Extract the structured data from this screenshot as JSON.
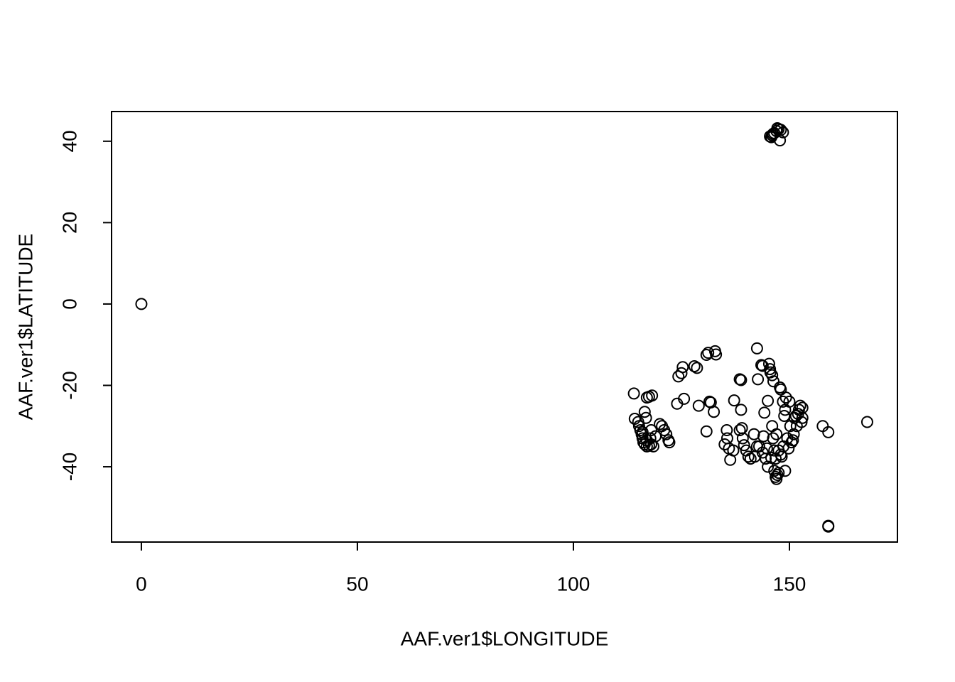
{
  "chart_data": {
    "type": "scatter",
    "xlabel": "AAF.ver1$LONGITUDE",
    "ylabel": "AAF.ver1$LATITUDE",
    "xlim": [
      -6.9,
      175
    ],
    "ylim": [
      -58.5,
      47.3
    ],
    "xticks": [
      0,
      50,
      100,
      150
    ],
    "yticks": [
      -40,
      -20,
      0,
      20,
      40
    ],
    "color": "#000000",
    "x": [
      0,
      145.5,
      146,
      146.5,
      147,
      147.5,
      148,
      148.5,
      147.8,
      146.2,
      147.2,
      145.8,
      159,
      159,
      159,
      168,
      157.7,
      114,
      114.2,
      115,
      115.5,
      115.8,
      116,
      116.2,
      116.5,
      117,
      117.5,
      118,
      118.5,
      116.5,
      116.8,
      117,
      117.5,
      118.2,
      118,
      119,
      120,
      120.5,
      121,
      121.5,
      122,
      122.2,
      117.8,
      115.2,
      116,
      117,
      124,
      124.3,
      125,
      125.3,
      125.6,
      128,
      128.6,
      129,
      130.8,
      131.2,
      132.8,
      133,
      131.5,
      131.8,
      132.5,
      130.8,
      135.5,
      135,
      135.6,
      136,
      136.3,
      137,
      137.2,
      138.5,
      138.8,
      138.8,
      138.5,
      139,
      139.2,
      139.5,
      140,
      140.5,
      141,
      141.8,
      142.5,
      142.7,
      143,
      143.5,
      143.8,
      144,
      144.2,
      144.5,
      145,
      145,
      145.3,
      145.5,
      145.6,
      146,
      146.3,
      146,
      146.2,
      146.5,
      146.5,
      146.8,
      147,
      147.2,
      147.5,
      147.8,
      148,
      148.2,
      148.5,
      148.6,
      148.8,
      149,
      149,
      149.2,
      149.5,
      149.8,
      150,
      150.2,
      150.5,
      150.8,
      151,
      151.2,
      151.5,
      151.7,
      152,
      152.2,
      152.5,
      152.8,
      153,
      153,
      147,
      146.8,
      147.5,
      148,
      145.8,
      143.8,
      142,
      142.5,
      144.8
    ],
    "y": [
      0,
      41.2,
      41.5,
      42,
      42.5,
      43,
      42.8,
      42.2,
      40.2,
      41.8,
      43.2,
      41,
      -54.5,
      -54.7,
      -31.5,
      -29,
      -30,
      -22,
      -28.2,
      -29,
      -31,
      -32,
      -33,
      -34,
      -34.5,
      -35,
      -34.8,
      -34.5,
      -35,
      -26.5,
      -28,
      -23,
      -22.8,
      -22.5,
      -31,
      -32.5,
      -29.5,
      -30,
      -31,
      -32,
      -33.5,
      -34,
      -33,
      -30,
      -31.5,
      -33.5,
      -24.5,
      -17.8,
      -17,
      -15.5,
      -23.3,
      -15.3,
      -15.7,
      -25,
      -12.5,
      -12,
      -11.6,
      -12.4,
      -24,
      -24.2,
      -26.5,
      -31.3,
      -31,
      -34.5,
      -33,
      -35.5,
      -38.3,
      -36,
      -23.7,
      -18.5,
      -18.7,
      -26,
      -31,
      -30.5,
      -33,
      -34.7,
      -36,
      -37.5,
      -38,
      -32,
      -10.9,
      -18.5,
      -35,
      -15,
      -15.2,
      -32.5,
      -26.7,
      -38,
      -40,
      -23.8,
      -14.7,
      -16,
      -16.8,
      -17.5,
      -19,
      -30,
      -33,
      -36,
      -41,
      -42.5,
      -43,
      -42,
      -41.5,
      -20.5,
      -21,
      -37.5,
      -24,
      -35,
      -27.5,
      -41,
      -26,
      -23,
      -33,
      -35.5,
      -24,
      -30,
      -34,
      -33.5,
      -32,
      -28,
      -27.5,
      -30,
      -27,
      -26,
      -25,
      -29,
      -28,
      -25.5,
      -32,
      -38,
      -36,
      -37,
      -37.8,
      -36.5,
      -37.5,
      -35,
      -35.5
    ]
  }
}
